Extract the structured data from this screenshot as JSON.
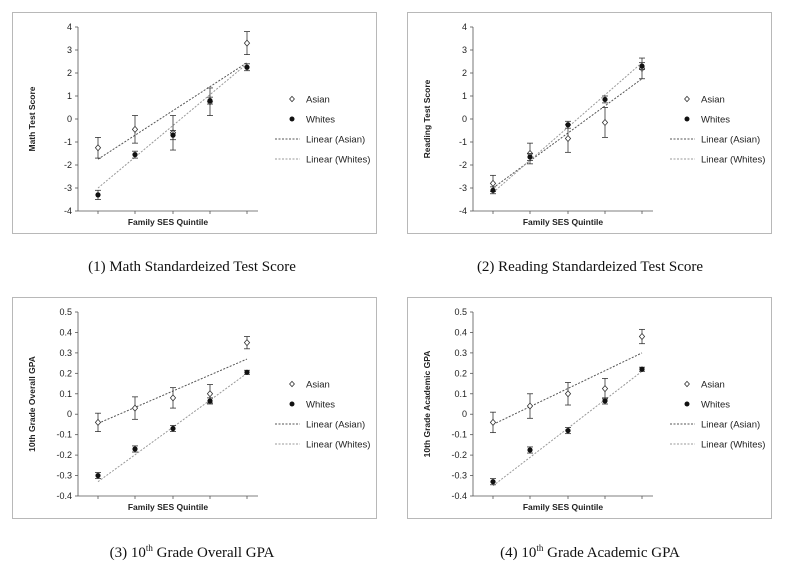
{
  "chart_data": [
    {
      "type": "scatter",
      "caption": "(1) Math Standardeized Test Score",
      "xlabel": "Family SES Quintile",
      "ylabel": "Math Test Score",
      "ylim": [
        -4,
        4
      ],
      "yticks": [
        4,
        3,
        2,
        1,
        0,
        -1,
        -2,
        -3,
        -4
      ],
      "x": [
        1,
        2,
        3,
        4,
        5
      ],
      "series": [
        {
          "name": "Asian",
          "marker": "open-diamond",
          "values": [
            -1.25,
            -0.45,
            -0.6,
            0.75,
            3.3
          ],
          "err": [
            0.45,
            0.6,
            0.75,
            0.6,
            0.5
          ]
        },
        {
          "name": "Whites",
          "marker": "filled-circle",
          "values": [
            -3.3,
            -1.55,
            -0.7,
            0.8,
            2.25
          ],
          "err": [
            0.2,
            0.15,
            0.2,
            0.15,
            0.15
          ]
        }
      ],
      "trendlines": [
        {
          "name": "Linear (Asian)",
          "start": -1.75,
          "end": 2.45
        },
        {
          "name": "Linear (Whites)",
          "start": -3.0,
          "end": 2.4
        }
      ]
    },
    {
      "type": "scatter",
      "caption": "(2) Reading Standardeized Test Score",
      "xlabel": "Family SES Quintile",
      "ylabel": "Reading Test Score",
      "ylim": [
        -4,
        4
      ],
      "yticks": [
        4,
        3,
        2,
        1,
        0,
        -1,
        -2,
        -3,
        -4
      ],
      "x": [
        1,
        2,
        3,
        4,
        5
      ],
      "series": [
        {
          "name": "Asian",
          "marker": "open-diamond",
          "values": [
            -2.8,
            -1.5,
            -0.85,
            -0.15,
            2.2
          ],
          "err": [
            0.35,
            0.45,
            0.6,
            0.65,
            0.45
          ]
        },
        {
          "name": "Whites",
          "marker": "filled-circle",
          "values": [
            -3.1,
            -1.65,
            -0.25,
            0.85,
            2.3
          ],
          "err": [
            0.15,
            0.15,
            0.15,
            0.15,
            0.15
          ]
        }
      ],
      "trendlines": [
        {
          "name": "Linear (Asian)",
          "start": -3.0,
          "end": 1.75
        },
        {
          "name": "Linear (Whites)",
          "start": -3.2,
          "end": 2.45
        }
      ]
    },
    {
      "type": "scatter",
      "caption": "(3) 10th Grade Overall GPA",
      "caption_parts": [
        "(3) 10",
        "th",
        " Grade Overall GPA"
      ],
      "xlabel": "Family SES Quintile",
      "ylabel": "10th Grade Overall GPA",
      "ylim": [
        -0.4,
        0.5
      ],
      "yticks": [
        0.5,
        0.4,
        0.3,
        0.2,
        0.1,
        0,
        -0.1,
        -0.2,
        -0.3,
        -0.4
      ],
      "x": [
        1,
        2,
        3,
        4,
        5
      ],
      "series": [
        {
          "name": "Asian",
          "marker": "open-diamond",
          "values": [
            -0.04,
            0.03,
            0.08,
            0.1,
            0.35
          ],
          "err": [
            0.045,
            0.055,
            0.05,
            0.045,
            0.03
          ]
        },
        {
          "name": "Whites",
          "marker": "filled-circle",
          "values": [
            -0.3,
            -0.17,
            -0.07,
            0.065,
            0.205
          ],
          "err": [
            0.015,
            0.015,
            0.015,
            0.015,
            0.01
          ]
        }
      ],
      "trendlines": [
        {
          "name": "Linear (Asian)",
          "start": -0.045,
          "end": 0.27
        },
        {
          "name": "Linear (Whites)",
          "start": -0.33,
          "end": 0.2
        }
      ]
    },
    {
      "type": "scatter",
      "caption": "(4) 10th Grade Academic GPA",
      "caption_parts": [
        "(4) 10",
        "th",
        " Grade Academic GPA"
      ],
      "xlabel": "Family SES Quintile",
      "ylabel": "10th Grade Academic GPA",
      "ylim": [
        -0.4,
        0.5
      ],
      "yticks": [
        0.5,
        0.4,
        0.3,
        0.2,
        0.1,
        0,
        -0.1,
        -0.2,
        -0.3,
        -0.4
      ],
      "x": [
        1,
        2,
        3,
        4,
        5
      ],
      "series": [
        {
          "name": "Asian",
          "marker": "open-diamond",
          "values": [
            -0.04,
            0.04,
            0.1,
            0.125,
            0.38
          ],
          "err": [
            0.05,
            0.06,
            0.055,
            0.05,
            0.035
          ]
        },
        {
          "name": "Whites",
          "marker": "filled-circle",
          "values": [
            -0.33,
            -0.175,
            -0.08,
            0.065,
            0.22
          ],
          "err": [
            0.015,
            0.015,
            0.015,
            0.015,
            0.01
          ]
        }
      ],
      "trendlines": [
        {
          "name": "Linear (Asian)",
          "start": -0.05,
          "end": 0.3
        },
        {
          "name": "Linear (Whites)",
          "start": -0.35,
          "end": 0.21
        }
      ]
    }
  ]
}
